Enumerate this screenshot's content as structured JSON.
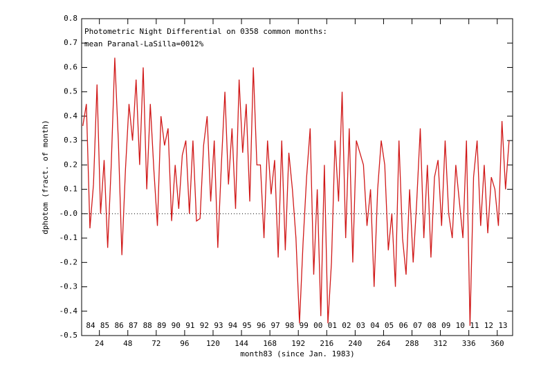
{
  "chart_data": {
    "type": "line",
    "annotations": [
      "Photometric Night Differential on 0358 common months:",
      "mean Paranal-LaSilla=0012%"
    ],
    "xlabel": "month83 (since Jan. 1983)",
    "ylabel": "dphotom (fract. of month)",
    "year_labels": [
      "84",
      "85",
      "86",
      "87",
      "88",
      "89",
      "90",
      "91",
      "92",
      "93",
      "94",
      "95",
      "96",
      "97",
      "98",
      "99",
      "00",
      "01",
      "02",
      "03",
      "04",
      "05",
      "06",
      "07",
      "08",
      "09",
      "10",
      "11",
      "12",
      "13"
    ],
    "x": [
      10,
      13,
      16,
      19,
      22,
      25,
      28,
      31,
      34,
      37,
      40,
      43,
      46,
      49,
      52,
      55,
      58,
      61,
      64,
      67,
      70,
      73,
      76,
      79,
      82,
      85,
      88,
      91,
      94,
      97,
      100,
      103,
      106,
      109,
      112,
      115,
      118,
      121,
      124,
      127,
      130,
      133,
      136,
      139,
      142,
      145,
      148,
      151,
      154,
      157,
      160,
      163,
      166,
      169,
      172,
      175,
      178,
      181,
      184,
      187,
      190,
      193,
      196,
      199,
      202,
      205,
      208,
      211,
      214,
      217,
      220,
      223,
      226,
      229,
      232,
      235,
      238,
      241,
      244,
      247,
      250,
      253,
      256,
      259,
      262,
      265,
      268,
      271,
      274,
      277,
      280,
      283,
      286,
      289,
      292,
      295,
      298,
      301,
      304,
      307,
      310,
      313,
      316,
      319,
      322,
      325,
      328,
      331,
      334,
      337,
      340,
      343,
      346,
      349,
      352,
      355,
      358,
      361,
      364,
      367,
      370
    ],
    "series": [
      {
        "name": "dphotom",
        "color": "#d01818",
        "values": [
          0.36,
          0.45,
          -0.06,
          0.12,
          0.53,
          0.0,
          0.22,
          -0.14,
          0.2,
          0.64,
          0.3,
          -0.17,
          0.18,
          0.45,
          0.3,
          0.55,
          0.2,
          0.6,
          0.1,
          0.45,
          0.18,
          -0.05,
          0.4,
          0.28,
          0.35,
          -0.03,
          0.2,
          0.02,
          0.24,
          0.3,
          0.0,
          0.3,
          -0.03,
          -0.02,
          0.28,
          0.4,
          0.05,
          0.3,
          -0.14,
          0.2,
          0.5,
          0.12,
          0.35,
          0.02,
          0.55,
          0.25,
          0.45,
          0.05,
          0.6,
          0.2,
          0.2,
          -0.1,
          0.3,
          0.08,
          0.22,
          -0.18,
          0.3,
          -0.15,
          0.25,
          0.1,
          -0.1,
          -0.45,
          -0.12,
          0.15,
          0.35,
          -0.25,
          0.1,
          -0.42,
          0.2,
          -0.45,
          -0.2,
          0.3,
          0.05,
          0.5,
          -0.1,
          0.35,
          -0.2,
          0.3,
          0.25,
          0.2,
          -0.05,
          0.1,
          -0.3,
          0.1,
          0.3,
          0.2,
          -0.15,
          0.0,
          -0.3,
          0.3,
          -0.1,
          -0.25,
          0.1,
          -0.2,
          0.05,
          0.35,
          -0.1,
          0.2,
          -0.18,
          0.15,
          0.22,
          -0.05,
          0.3,
          0.0,
          -0.1,
          0.2,
          0.05,
          -0.1,
          0.3,
          -0.46,
          0.15,
          0.3,
          -0.05,
          0.2,
          -0.08,
          0.15,
          0.1,
          -0.05,
          0.38,
          0.1,
          0.3
        ]
      }
    ],
    "xlim": [
      9,
      373
    ],
    "ylim": [
      -0.5,
      0.8
    ],
    "xticks": [
      24,
      48,
      72,
      96,
      120,
      144,
      168,
      192,
      216,
      240,
      264,
      288,
      312,
      336,
      360
    ],
    "yticks": [
      -0.5,
      -0.4,
      -0.3,
      -0.2,
      -0.1,
      {
        "value": 0,
        "label": "-0.0"
      },
      0.1,
      0.2,
      0.3,
      0.4,
      0.5,
      0.6,
      0.7,
      0.8
    ],
    "zero_line": true
  }
}
